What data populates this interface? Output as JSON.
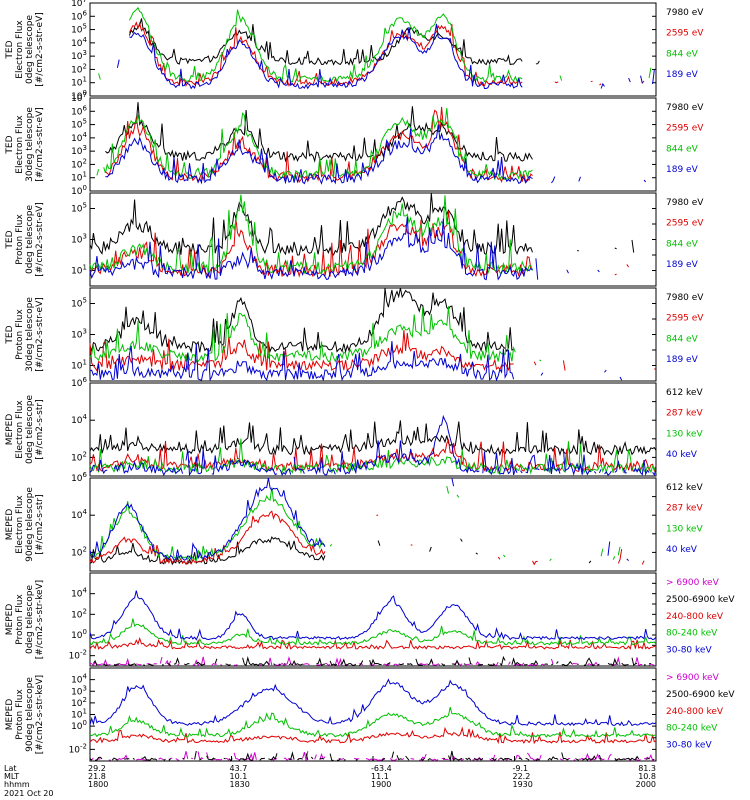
{
  "chart_data": [
    {
      "type": "line",
      "ylabel": [
        "TED",
        "Electron Flux",
        "0deg telescope",
        "[#/cm2-s-str-eV]"
      ],
      "yticks": [
        "10^0",
        "10^1",
        "10^2",
        "10^3",
        "10^4",
        "10^5",
        "10^6",
        "10^7"
      ],
      "ylim_exp": [
        0,
        7
      ],
      "series": [
        {
          "name": "7980 eV",
          "color": "#000000"
        },
        {
          "name": "2595 eV",
          "color": "#e00000"
        },
        {
          "name": "844 eV",
          "color": "#00c000"
        },
        {
          "name": "189 eV",
          "color": "#0000d0"
        }
      ],
      "baselines": [
        2.6,
        1.0,
        1.3,
        0.8
      ],
      "bursts": [
        [
          [
            1810,
            2.5,
            3
          ],
          [
            1832,
            2.2,
            3
          ],
          [
            1908,
            2.3,
            3
          ],
          [
            1915,
            1.8,
            2.5
          ],
          [
            1992,
            1.6,
            2.5
          ]
        ],
        [
          [
            1810,
            4.3,
            3
          ],
          [
            1832,
            3.2,
            3
          ],
          [
            1906,
            3.6,
            4
          ],
          [
            1915,
            4.0,
            2.5
          ],
          [
            1992,
            3.2,
            2.5
          ]
        ],
        [
          [
            1810,
            5.2,
            3
          ],
          [
            1832,
            4.5,
            3
          ],
          [
            1906,
            4.5,
            4
          ],
          [
            1915,
            4.5,
            2.5
          ],
          [
            1992,
            4.0,
            2.5
          ]
        ],
        [
          [
            1810,
            4.0,
            3
          ],
          [
            1832,
            3.2,
            3
          ],
          [
            1906,
            3.7,
            4
          ],
          [
            1915,
            3.4,
            2.5
          ],
          [
            1992,
            3.0,
            2.5
          ]
        ]
      ],
      "gaps": [
        [
          1800,
          1808
        ],
        [
          1932,
          1988
        ]
      ],
      "noise": 0.5
    },
    {
      "type": "line",
      "ylabel": [
        "TED",
        "Electron Flux",
        "30deg telescope",
        "[#/cm2-s-str-eV]"
      ],
      "yticks": [
        "10^0",
        "10^1",
        "10^2",
        "10^3",
        "10^4",
        "10^5",
        "10^6",
        "10^7"
      ],
      "ylim_exp": [
        0,
        7
      ],
      "series": [
        {
          "name": "7980 eV",
          "color": "#000000"
        },
        {
          "name": "2595 eV",
          "color": "#e00000"
        },
        {
          "name": "844 eV",
          "color": "#00c000"
        },
        {
          "name": "189 eV",
          "color": "#0000d0"
        }
      ],
      "baselines": [
        2.6,
        1.0,
        1.2,
        0.9
      ],
      "bursts": [
        [
          [
            1810,
            2.5,
            3
          ],
          [
            1832,
            2.0,
            3
          ],
          [
            1908,
            2.2,
            3
          ],
          [
            1915,
            2.0,
            2.5
          ],
          [
            1992,
            1.7,
            2.5
          ]
        ],
        [
          [
            1810,
            3.5,
            3
          ],
          [
            1832,
            2.5,
            3
          ],
          [
            1906,
            3.2,
            4
          ],
          [
            1915,
            3.8,
            2.5
          ],
          [
            1992,
            3.2,
            2.5
          ]
        ],
        [
          [
            1810,
            4.2,
            3
          ],
          [
            1832,
            3.5,
            3
          ],
          [
            1906,
            4.0,
            4
          ],
          [
            1915,
            3.8,
            2.5
          ],
          [
            1992,
            3.8,
            2.5
          ]
        ],
        [
          [
            1810,
            2.8,
            3
          ],
          [
            1832,
            2.2,
            3
          ],
          [
            1906,
            2.6,
            4
          ],
          [
            1915,
            3.0,
            2.5
          ],
          [
            1992,
            2.8,
            2.5
          ]
        ]
      ],
      "gaps": [
        [
          1800,
          1803
        ],
        [
          1934,
          1985
        ]
      ],
      "noise": 0.7
    },
    {
      "type": "line",
      "ylabel": [
        "TED",
        "Proton Flux",
        "0deg telescope",
        "[#/cm2-s-str-eV]"
      ],
      "yticks": [
        "10^1",
        "10^3",
        "10^5"
      ],
      "ylim_exp": [
        0,
        6
      ],
      "series": [
        {
          "name": "7980 eV",
          "color": "#000000"
        },
        {
          "name": "2595 eV",
          "color": "#e00000"
        },
        {
          "name": "844 eV",
          "color": "#00c000"
        },
        {
          "name": "189 eV",
          "color": "#0000d0"
        }
      ],
      "baselines": [
        2.4,
        1.0,
        1.2,
        0.8
      ],
      "bursts": [
        [
          [
            1810,
            1.6,
            3
          ],
          [
            1832,
            2.7,
            2
          ],
          [
            1906,
            3.0,
            4
          ],
          [
            1915,
            2.2,
            2.5
          ],
          [
            1992,
            2.2,
            2.5
          ]
        ],
        [
          [
            1810,
            1.2,
            3
          ],
          [
            1832,
            2.2,
            2
          ],
          [
            1906,
            2.8,
            4
          ],
          [
            1915,
            2.3,
            2.5
          ],
          [
            1992,
            1.6,
            2.5
          ]
        ],
        [
          [
            1810,
            1.2,
            3
          ],
          [
            1832,
            3.7,
            2
          ],
          [
            1906,
            3.5,
            4
          ],
          [
            1915,
            2.8,
            2.5
          ],
          [
            1992,
            2.0,
            2.5
          ]
        ],
        [
          [
            1810,
            0.6,
            3
          ],
          [
            1832,
            1.0,
            2
          ],
          [
            1906,
            2.2,
            4
          ],
          [
            1915,
            1.8,
            2.5
          ],
          [
            1992,
            1.5,
            2.5
          ]
        ]
      ],
      "gaps": [
        [
          1934,
          1986
        ]
      ],
      "noise": 0.8
    },
    {
      "type": "line",
      "ylabel": [
        "TED",
        "Proton Flux",
        "30deg telescope",
        "[#/cm2-s-str-eV]"
      ],
      "yticks": [
        "10^1",
        "10^3",
        "10^5"
      ],
      "ylim_exp": [
        0,
        6
      ],
      "series": [
        {
          "name": "7980 eV",
          "color": "#000000"
        },
        {
          "name": "2595 eV",
          "color": "#e00000"
        },
        {
          "name": "844 eV",
          "color": "#00c000"
        },
        {
          "name": "189 eV",
          "color": "#0000d0"
        }
      ],
      "baselines": [
        2.2,
        1.0,
        1.6,
        0.4
      ],
      "bursts": [
        [
          [
            1810,
            1.6,
            3
          ],
          [
            1832,
            2.8,
            2
          ],
          [
            1906,
            3.5,
            4
          ],
          [
            1915,
            2.6,
            2.5
          ],
          [
            1992,
            1.8,
            2.5
          ]
        ],
        [
          [
            1810,
            0.4,
            3
          ],
          [
            1832,
            1.2,
            2
          ],
          [
            1906,
            1.0,
            4
          ],
          [
            1915,
            0.8,
            2.5
          ],
          [
            1992,
            0.8,
            2.5
          ]
        ],
        [
          [
            1810,
            0.8,
            3
          ],
          [
            1832,
            2.5,
            2
          ],
          [
            1906,
            1.8,
            4
          ],
          [
            1915,
            2.0,
            2.5
          ],
          [
            1992,
            1.2,
            2.5
          ]
        ],
        [
          [
            1810,
            0.2,
            3
          ],
          [
            1832,
            0.6,
            2
          ],
          [
            1906,
            0.8,
            4
          ],
          [
            1915,
            0.8,
            2.5
          ],
          [
            1992,
            0.8,
            2.5
          ]
        ]
      ],
      "gaps": [
        [
          1930,
          1986
        ]
      ],
      "noise": 0.7
    },
    {
      "type": "line",
      "ylabel": [
        "MEPED",
        "Electron Flux",
        "0deg telescope",
        "[#/cm2-s-str]"
      ],
      "yticks": [
        "10^2",
        "10^4",
        "10^6"
      ],
      "ylim_exp": [
        1,
        6
      ],
      "series": [
        {
          "name": "612 keV",
          "color": "#000000"
        },
        {
          "name": "287 keV",
          "color": "#e00000"
        },
        {
          "name": "130 keV",
          "color": "#00c000"
        },
        {
          "name": "40 keV",
          "color": "#0000d0"
        }
      ],
      "baselines": [
        2.4,
        1.5,
        1.4,
        1.2
      ],
      "bursts": [
        [
          [
            1810,
            0.2,
            3
          ],
          [
            1832,
            0.4,
            3
          ],
          [
            1906,
            0.5,
            6
          ],
          [
            1915,
            0.4,
            3
          ],
          [
            1992,
            0.2,
            3
          ]
        ],
        [
          [
            1810,
            0.3,
            3
          ],
          [
            1832,
            0.4,
            3
          ],
          [
            1906,
            0.5,
            6
          ],
          [
            1915,
            0.6,
            3
          ],
          [
            1992,
            0.3,
            3
          ]
        ],
        [
          [
            1810,
            0.2,
            3
          ],
          [
            1832,
            0.3,
            3
          ],
          [
            1906,
            0.3,
            6
          ],
          [
            1915,
            0.3,
            3
          ],
          [
            1992,
            0.3,
            3
          ]
        ],
        [
          [
            1810,
            0.3,
            3
          ],
          [
            1832,
            0.5,
            3
          ],
          [
            1906,
            0.8,
            6
          ],
          [
            1915,
            2.6,
            1.5
          ],
          [
            1992,
            2.4,
            1.5
          ]
        ]
      ],
      "gaps": [],
      "noise": 0.5
    },
    {
      "type": "line",
      "ylabel": [
        "MEPED",
        "Electron Flux",
        "90deg telescope",
        "[#/cm2-s-str]"
      ],
      "yticks": [
        "10^2",
        "10^4",
        "10^6"
      ],
      "ylim_exp": [
        1,
        6
      ],
      "series": [
        {
          "name": "612 keV",
          "color": "#000000"
        },
        {
          "name": "287 keV",
          "color": "#e00000"
        },
        {
          "name": "130 keV",
          "color": "#00c000"
        },
        {
          "name": "40 keV",
          "color": "#0000d0"
        }
      ],
      "baselines": [
        1.5,
        1.5,
        1.7,
        1.7
      ],
      "bursts": [
        [
          [
            1808,
            0.5,
            3
          ],
          [
            1838,
            1.2,
            5
          ],
          [
            1900,
            1.0,
            5
          ],
          [
            1917,
            1.2,
            4
          ],
          [
            1990,
            1.0,
            3
          ]
        ],
        [
          [
            1808,
            1.2,
            3
          ],
          [
            1838,
            2.5,
            5
          ],
          [
            1900,
            2.5,
            5
          ],
          [
            1917,
            2.8,
            4
          ],
          [
            1990,
            1.3,
            3
          ]
        ],
        [
          [
            1808,
            2.5,
            3
          ],
          [
            1838,
            3.2,
            5
          ],
          [
            1900,
            3.2,
            5
          ],
          [
            1917,
            3.5,
            4
          ],
          [
            1990,
            2.0,
            3
          ]
        ],
        [
          [
            1808,
            2.8,
            3
          ],
          [
            1838,
            3.8,
            5
          ],
          [
            1900,
            3.8,
            5
          ],
          [
            1917,
            3.8,
            4
          ],
          [
            1990,
            2.6,
            3
          ]
        ]
      ],
      "gaps": [
        [
          1850,
          1893
        ],
        [
          1927,
          1984
        ]
      ],
      "noise": 0.3
    },
    {
      "type": "line",
      "ylabel": [
        "MEPED",
        "Proton Flux",
        "0deg telescope",
        "[#/cm2-s-str-keV]"
      ],
      "yticks": [
        "10^-2",
        "10^0",
        "10^2",
        "10^4"
      ],
      "ylim_exp": [
        -3,
        6
      ],
      "series": [
        {
          "name": "> 6900 keV",
          "color": "#d000d0"
        },
        {
          "name": "2500-6900 keV",
          "color": "#000000"
        },
        {
          "name": "240-800 keV",
          "color": "#e00000"
        },
        {
          "name": "80-240 keV",
          "color": "#00c000"
        },
        {
          "name": "30-80 keV",
          "color": "#0000d0"
        }
      ],
      "baselines": [
        -2.9,
        -2.9,
        -1.2,
        -0.8,
        -0.3
      ],
      "bursts": [
        [],
        [],
        [
          [
            1810,
            0.3,
            3
          ]
        ],
        [
          [
            1810,
            1.8,
            3
          ],
          [
            1832,
            0.8,
            2
          ],
          [
            1904,
            1.2,
            3
          ],
          [
            1917,
            1.2,
            3
          ],
          [
            1990,
            1.3,
            3
          ]
        ],
        [
          [
            1810,
            4.0,
            3
          ],
          [
            1832,
            2.3,
            2
          ],
          [
            1904,
            3.5,
            3
          ],
          [
            1917,
            3.2,
            3
          ],
          [
            1990,
            3.4,
            3
          ]
        ]
      ],
      "gaps": [],
      "noise": 0.3
    },
    {
      "type": "line",
      "ylabel": [
        "MEPED",
        "Proton Flux",
        "90deg telescope",
        "[#/cm2-s-str-keV]"
      ],
      "yticks": [
        "10^-2",
        "10^0",
        "10^1",
        "10^2",
        "10^3",
        "10^4"
      ],
      "ylim_exp": [
        -3,
        5
      ],
      "series": [
        {
          "name": "> 6900 keV",
          "color": "#d000d0"
        },
        {
          "name": "2500-6900 keV",
          "color": "#000000"
        },
        {
          "name": "240-800 keV",
          "color": "#e00000"
        },
        {
          "name": "80-240 keV",
          "color": "#00c000"
        },
        {
          "name": "30-80 keV",
          "color": "#0000d0"
        }
      ],
      "baselines": [
        -2.9,
        -2.9,
        -1.3,
        -0.8,
        0.2
      ],
      "bursts": [
        [],
        [],
        [
          [
            1810,
            0.5,
            3
          ],
          [
            1838,
            0.4,
            4
          ],
          [
            1904,
            0.6,
            4
          ],
          [
            1917,
            0.6,
            4
          ],
          [
            1990,
            0.5,
            3
          ]
        ],
        [
          [
            1810,
            1.2,
            3
          ],
          [
            1838,
            1.4,
            4
          ],
          [
            1904,
            1.8,
            4
          ],
          [
            1917,
            1.8,
            4
          ],
          [
            1990,
            1.3,
            3
          ]
        ],
        [
          [
            1810,
            3.2,
            3
          ],
          [
            1838,
            3.0,
            5
          ],
          [
            1904,
            3.5,
            4
          ],
          [
            1917,
            3.3,
            4
          ],
          [
            1990,
            3.0,
            3
          ]
        ]
      ],
      "gaps": [],
      "noise": 0.3
    }
  ],
  "x_axis": {
    "time_range": [
      "1800",
      "2000"
    ],
    "row_labels": [
      "Lat",
      "MLT",
      "hhmm"
    ],
    "ticks": [
      {
        "lat": "29.2",
        "mlt": "21.8",
        "hhmm": "1800"
      },
      {
        "lat": "43.7",
        "mlt": "10.1",
        "hhmm": "1830"
      },
      {
        "lat": "-63.4",
        "mlt": "11.1",
        "hhmm": "1900"
      },
      {
        "lat": "-9.1",
        "mlt": "22.2",
        "hhmm": "1930"
      },
      {
        "lat": "81.3",
        "mlt": "10.8",
        "hhmm": "2000"
      }
    ],
    "date": "2021 Oct 20"
  }
}
